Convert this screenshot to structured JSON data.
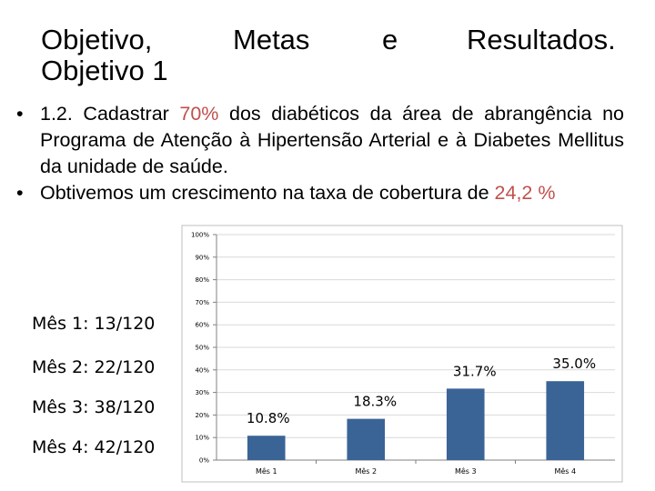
{
  "title": {
    "line1_words": [
      "Objetivo,",
      "Metas",
      "e",
      "Resultados."
    ],
    "line2": "Objetivo 1"
  },
  "bullets": [
    {
      "before": "1.2. Cadastrar ",
      "highlight": "70%",
      "after": " dos diabéticos da área de abrangência no Programa de Atenção à Hipertensão Arterial e à Diabetes Mellitus da unidade de saúde."
    },
    {
      "before": "Obtivemos um crescimento na taxa de cobertura de ",
      "highlight": "24,2 %",
      "after": ""
    }
  ],
  "side_labels": [
    "Mês 1: 13/120",
    "Mês 2: 22/120",
    "Mês 3: 38/120",
    "Mês 4: 42/120"
  ],
  "colors": {
    "bar": "#3a6496",
    "highlight": "#c0504d",
    "gridline": "#d9d9d9"
  },
  "chart_data": {
    "type": "bar",
    "categories": [
      "Mês 1",
      "Mês 2",
      "Mês 3",
      "Mês 4"
    ],
    "values": [
      10.8,
      18.3,
      31.7,
      35.0
    ],
    "data_labels": [
      "10.8%",
      "18.3%",
      "31.7%",
      "35.0%"
    ],
    "ylim": [
      0,
      100
    ],
    "yticks": [
      0,
      10,
      20,
      30,
      40,
      50,
      60,
      70,
      80,
      90,
      100
    ],
    "ytick_labels": [
      "0%",
      "10%",
      "20%",
      "30%",
      "40%",
      "50%",
      "60%",
      "70%",
      "80%",
      "90%",
      "100%"
    ],
    "grid": true,
    "legend": false
  }
}
